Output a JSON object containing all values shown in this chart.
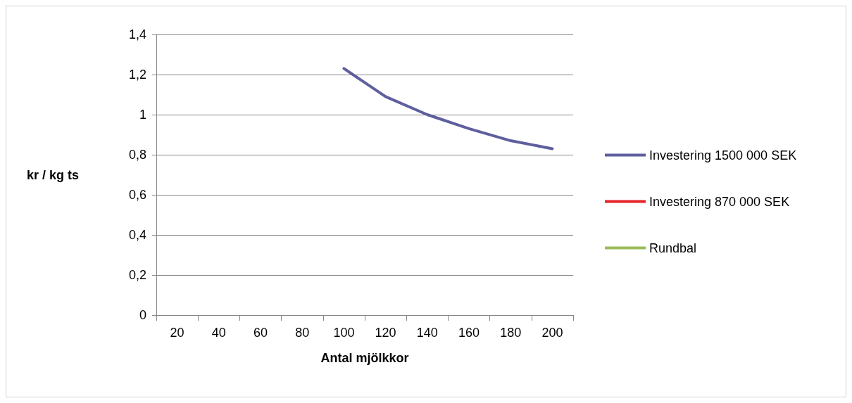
{
  "chart_data": {
    "type": "line",
    "xlabel": "Antal mjölkkor",
    "ylabel": "kr / kg ts",
    "categories": [
      "20",
      "40",
      "60",
      "80",
      "100",
      "120",
      "140",
      "160",
      "180",
      "200"
    ],
    "series": [
      {
        "name": "Investering 1500 000 SEK",
        "color": "#5f5f9e",
        "values": [
          null,
          null,
          null,
          null,
          1.23,
          1.09,
          1.0,
          0.93,
          0.87,
          0.83
        ]
      },
      {
        "name": "Investering 870 000 SEK",
        "color": "#e3242b",
        "values": [
          null,
          null,
          null,
          null,
          null,
          null,
          null,
          null,
          null,
          null
        ]
      },
      {
        "name": "Rundbal",
        "color": "#9bbb59",
        "values": [
          null,
          null,
          null,
          null,
          null,
          null,
          null,
          null,
          null,
          null
        ]
      }
    ],
    "ylim": [
      0,
      1.4
    ],
    "yticks": [
      0,
      {
        "value": 0.2,
        "label": "0,2"
      },
      {
        "value": 0.4,
        "label": "0,4"
      },
      {
        "value": 0.6,
        "label": "0,6"
      },
      {
        "value": 0.8,
        "label": "0,8"
      },
      1,
      {
        "value": 1.2,
        "label": "1,2"
      },
      {
        "value": 1.4,
        "label": "1,4"
      }
    ],
    "grid": "y",
    "legend": "right",
    "marker": "none",
    "line_style": "solid"
  }
}
